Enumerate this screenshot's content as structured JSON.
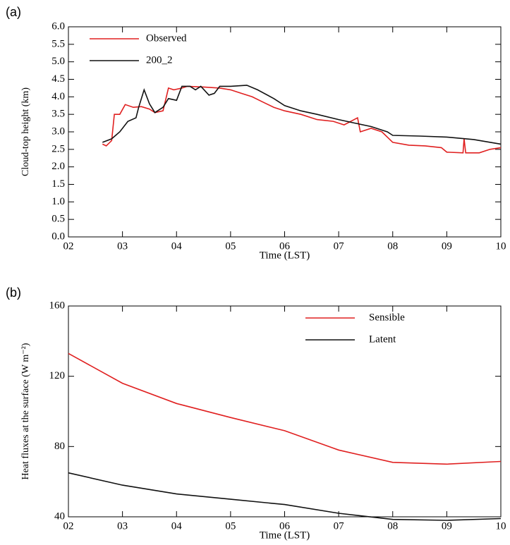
{
  "chart_data": [
    {
      "type": "line",
      "panel_label": "(a)",
      "xlabel": "Time (LST)",
      "ylabel": "Cloud-top height (km)",
      "xlim": [
        2,
        10
      ],
      "xticks": [
        {
          "value": 2,
          "label": "02"
        },
        {
          "value": 3,
          "label": "03"
        },
        {
          "value": 4,
          "label": "04"
        },
        {
          "value": 5,
          "label": "05"
        },
        {
          "value": 6,
          "label": "06"
        },
        {
          "value": 7,
          "label": "07"
        },
        {
          "value": 8,
          "label": "08"
        },
        {
          "value": 9,
          "label": "09"
        },
        {
          "value": 10,
          "label": "10"
        }
      ],
      "ylim": [
        0,
        6
      ],
      "yticks": [
        {
          "value": 0,
          "label": "0.0"
        },
        0.5,
        {
          "value": 1,
          "label": "1.0"
        },
        1.5,
        {
          "value": 2,
          "label": "2.0"
        },
        2.5,
        {
          "value": 3,
          "label": "3.0"
        },
        3.5,
        {
          "value": 4,
          "label": "4.0"
        },
        4.5,
        {
          "value": 5,
          "label": "5.0"
        },
        5.5,
        {
          "value": 6,
          "label": "6.0"
        }
      ],
      "legend": "upper left",
      "series": [
        {
          "name": "Observed",
          "color": "#e02020",
          "x": [
            2.63,
            2.7,
            2.8,
            2.85,
            2.95,
            3.05,
            3.2,
            3.35,
            3.5,
            3.6,
            3.75,
            3.85,
            3.95,
            4.1,
            4.2,
            4.5,
            4.8,
            5.0,
            5.2,
            5.4,
            5.6,
            5.8,
            6.0,
            6.3,
            6.6,
            6.9,
            7.1,
            7.35,
            7.4,
            7.6,
            7.8,
            8.0,
            8.3,
            8.6,
            8.9,
            9.0,
            9.3,
            9.32,
            9.35,
            9.6,
            9.8,
            10.0
          ],
          "values": [
            2.65,
            2.6,
            2.75,
            3.5,
            3.5,
            3.78,
            3.7,
            3.72,
            3.65,
            3.55,
            3.6,
            4.25,
            4.2,
            4.25,
            4.3,
            4.28,
            4.25,
            4.2,
            4.1,
            4.0,
            3.85,
            3.7,
            3.6,
            3.5,
            3.35,
            3.3,
            3.2,
            3.4,
            3.0,
            3.1,
            3.0,
            2.7,
            2.62,
            2.6,
            2.55,
            2.42,
            2.4,
            2.8,
            2.4,
            2.4,
            2.5,
            2.55
          ]
        },
        {
          "name": "200_2",
          "color": "#111111",
          "x": [
            2.63,
            2.8,
            2.95,
            3.1,
            3.25,
            3.3,
            3.4,
            3.5,
            3.6,
            3.75,
            3.85,
            4.0,
            4.1,
            4.25,
            4.35,
            4.45,
            4.6,
            4.7,
            4.8,
            5.0,
            5.3,
            5.5,
            5.8,
            6.0,
            6.3,
            6.6,
            7.0,
            7.3,
            7.6,
            7.9,
            8.0,
            8.5,
            9.0,
            9.5,
            10.0
          ],
          "values": [
            2.7,
            2.8,
            3.0,
            3.3,
            3.4,
            3.7,
            4.2,
            3.8,
            3.55,
            3.7,
            3.95,
            3.9,
            4.3,
            4.3,
            4.2,
            4.3,
            4.05,
            4.1,
            4.3,
            4.3,
            4.33,
            4.2,
            3.95,
            3.75,
            3.6,
            3.5,
            3.35,
            3.25,
            3.15,
            3.0,
            2.9,
            2.88,
            2.85,
            2.78,
            2.65
          ]
        }
      ]
    },
    {
      "type": "line",
      "panel_label": "(b)",
      "xlabel": "Time (LST)",
      "ylabel": "Heat fluxes at the surface (W m⁻²)",
      "xlim": [
        2,
        10
      ],
      "xticks": [
        {
          "value": 2,
          "label": "02"
        },
        {
          "value": 3,
          "label": "03"
        },
        {
          "value": 4,
          "label": "04"
        },
        {
          "value": 5,
          "label": "05"
        },
        {
          "value": 6,
          "label": "06"
        },
        {
          "value": 7,
          "label": "07"
        },
        {
          "value": 8,
          "label": "08"
        },
        {
          "value": 9,
          "label": "09"
        },
        {
          "value": 10,
          "label": "10"
        }
      ],
      "ylim": [
        40,
        160
      ],
      "yticks": [
        40,
        80,
        120,
        160
      ],
      "legend": "upper right",
      "series": [
        {
          "name": "Sensible",
          "color": "#e02020",
          "x": [
            2,
            3,
            4,
            5,
            6,
            7,
            8,
            9,
            10
          ],
          "values": [
            133,
            116,
            104.5,
            96.5,
            89,
            78,
            71,
            70,
            71.5
          ]
        },
        {
          "name": "Latent",
          "color": "#111111",
          "x": [
            2,
            3,
            4,
            5,
            6,
            7,
            8,
            9,
            10
          ],
          "values": [
            65,
            58,
            53,
            50,
            47,
            42,
            38.5,
            38,
            39
          ]
        }
      ]
    }
  ]
}
